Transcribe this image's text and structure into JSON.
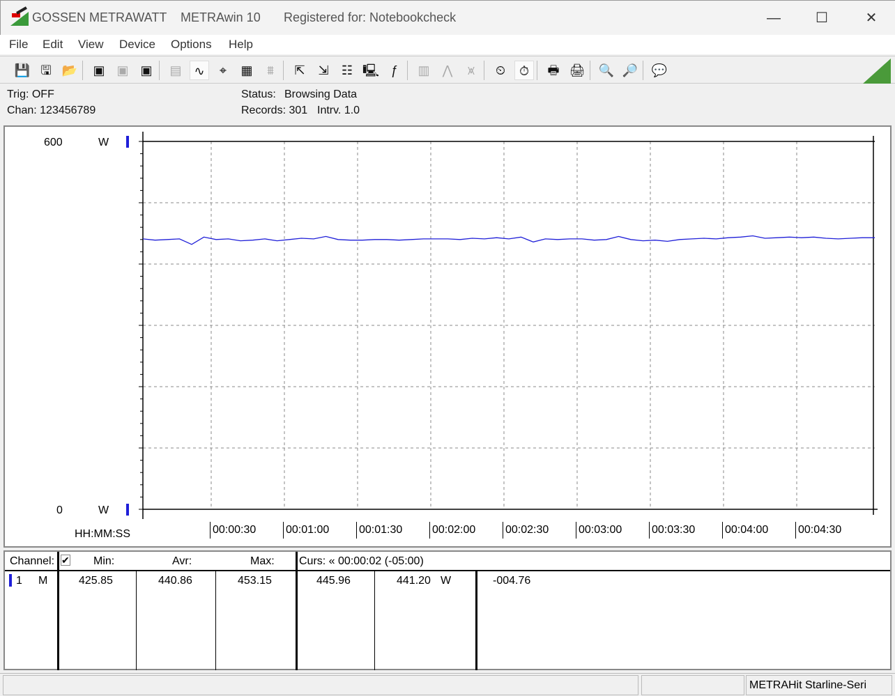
{
  "titlebar": {
    "brand": "GOSSEN METRAWATT",
    "app": "METRAwin 10",
    "registered": "Registered for: Notebookcheck",
    "minimize": "—",
    "maximize": "☐",
    "close": "✕"
  },
  "menu": [
    "File",
    "Edit",
    "View",
    "Device",
    "Options",
    "Help"
  ],
  "toolbar": [
    {
      "name": "save-icon",
      "glyph": "💾",
      "state": "normal"
    },
    {
      "name": "save-as-icon",
      "glyph": "🖫",
      "state": "normal"
    },
    {
      "name": "open-folder-icon",
      "glyph": "📂",
      "state": "normal"
    },
    {
      "name": "device-read-icon",
      "glyph": "▣",
      "state": "normal"
    },
    {
      "name": "device-read-disabled-icon",
      "glyph": "▣",
      "state": "disabled"
    },
    {
      "name": "device-memory-icon",
      "glyph": "▣",
      "state": "normal"
    },
    {
      "name": "digital-display-icon",
      "glyph": "▤",
      "state": "disabled"
    },
    {
      "name": "waveform-view-icon",
      "glyph": "∿",
      "state": "active"
    },
    {
      "name": "crosshair-cursor-icon",
      "glyph": "⌖",
      "state": "normal"
    },
    {
      "name": "table-view-icon",
      "glyph": "▦",
      "state": "normal"
    },
    {
      "name": "histogram-icon",
      "glyph": "⩩",
      "state": "disabled"
    },
    {
      "name": "export-icon",
      "glyph": "⇱",
      "state": "normal"
    },
    {
      "name": "import-icon",
      "glyph": "⇲",
      "state": "normal"
    },
    {
      "name": "data-list-icon",
      "glyph": "☷",
      "state": "normal"
    },
    {
      "name": "monitor-icon",
      "glyph": "🖳",
      "state": "normal"
    },
    {
      "name": "function-icon",
      "glyph": "ƒ",
      "state": "normal"
    },
    {
      "name": "meter-icon",
      "glyph": "▥",
      "state": "disabled"
    },
    {
      "name": "trigger-icon",
      "glyph": "⋀",
      "state": "disabled"
    },
    {
      "name": "signal-icon",
      "glyph": "⩙",
      "state": "disabled"
    },
    {
      "name": "clock-settings-icon",
      "glyph": "⏲",
      "state": "normal"
    },
    {
      "name": "timer-icon",
      "glyph": "⏱",
      "state": "active"
    },
    {
      "name": "print-preview-icon",
      "glyph": "🖶",
      "state": "normal"
    },
    {
      "name": "print-icon",
      "glyph": "🖨",
      "state": "normal"
    },
    {
      "name": "zoom-waveform-icon",
      "glyph": "🔍",
      "state": "normal"
    },
    {
      "name": "zoom-peak-icon",
      "glyph": "🔎",
      "state": "normal"
    },
    {
      "name": "comment-icon",
      "glyph": "💬",
      "state": "normal"
    }
  ],
  "info": {
    "trig": "Trig: OFF",
    "chan": "Chan:  123456789",
    "status_label": "Status:",
    "status_value": "Browsing Data",
    "records": "Records: 301",
    "interval": "Intrv. 1.0"
  },
  "chart_data": {
    "type": "line",
    "ylim": [
      0,
      600
    ],
    "y_top_label": "600",
    "y_bottom_label": "0",
    "y_unit": "W",
    "xlabel": "HH:MM:SS",
    "x_tick_labels": [
      "00:00:30",
      "00:01:00",
      "00:01:30",
      "00:02:00",
      "00:02:30",
      "00:03:00",
      "00:03:30",
      "00:04:00",
      "00:04:30"
    ],
    "x_tick_seconds": [
      30,
      60,
      90,
      120,
      150,
      180,
      210,
      240,
      270
    ],
    "xlim_seconds": [
      2,
      302
    ],
    "y_grid": [
      100,
      200,
      300,
      400,
      500
    ],
    "grid": true,
    "series_color": "#1f1fd8",
    "x_seconds": [
      2,
      7,
      12,
      17,
      22,
      27,
      32,
      37,
      42,
      47,
      52,
      57,
      62,
      67,
      72,
      77,
      82,
      87,
      92,
      97,
      102,
      107,
      112,
      117,
      122,
      127,
      132,
      137,
      142,
      147,
      152,
      157,
      162,
      167,
      172,
      177,
      182,
      187,
      192,
      197,
      202,
      207,
      212,
      217,
      222,
      227,
      232,
      237,
      242,
      247,
      252,
      257,
      262,
      267,
      272,
      277,
      282,
      287,
      292,
      297,
      302
    ],
    "values": [
      441,
      439,
      440,
      441,
      432,
      444,
      440,
      441,
      438,
      439,
      441,
      438,
      440,
      442,
      441,
      445,
      440,
      439,
      439,
      440,
      440,
      439,
      440,
      441,
      441,
      441,
      440,
      442,
      441,
      443,
      441,
      444,
      436,
      441,
      440,
      441,
      441,
      439,
      440,
      445,
      440,
      438,
      439,
      437,
      440,
      441,
      442,
      441,
      443,
      444,
      446,
      442,
      443,
      444,
      443,
      444,
      442,
      441,
      442,
      443,
      443
    ]
  },
  "table": {
    "headers": {
      "channel": "Channel:",
      "min": "Min:",
      "avr": "Avr:",
      "max": "Max:",
      "cursor": "Curs: « 00:00:02 (-05:00)"
    },
    "row": {
      "channel": "1",
      "mode": "M",
      "min": "425.85",
      "avr": "440.86",
      "max": "453.15",
      "curs1": "445.96",
      "curs2": "441.20",
      "unit": "W",
      "diff": "-004.76"
    }
  },
  "statusbar": {
    "device": "METRAHit Starline-Seri"
  }
}
